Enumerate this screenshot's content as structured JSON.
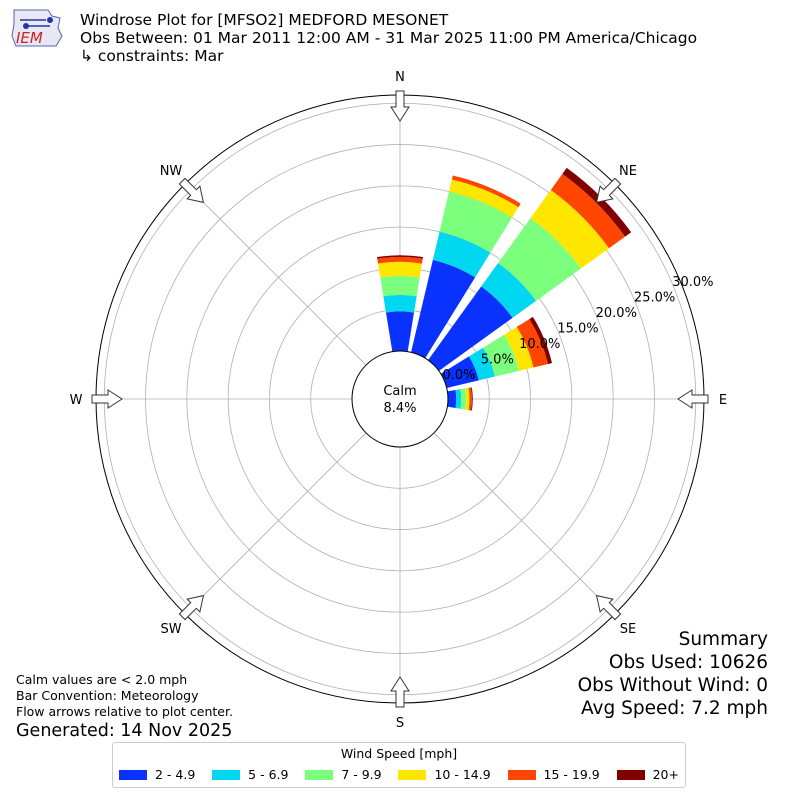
{
  "header": {
    "title": "Windrose Plot for [MFSO2] MEDFORD MESONET",
    "period": "Obs Between: 01 Mar 2011 12:00 AM - 31 Mar 2025 11:00 PM America/Chicago",
    "constraints": "↳ constraints: Mar"
  },
  "logo": {
    "text": "IEM"
  },
  "notes": {
    "calm_def": "Calm values are < 2.0 mph",
    "bar_convention": "Bar Convention: Meteorology",
    "flow_arrows": "Flow arrows relative to plot center.",
    "generated": "Generated: 14 Nov 2025"
  },
  "summary": {
    "title": "Summary",
    "obs_used": "Obs Used: 10626",
    "obs_without_wind": "Obs Without Wind: 0",
    "avg_speed": "Avg Speed: 7.2 mph"
  },
  "chart_data": {
    "type": "windrose",
    "legend_title": "Wind Speed [mph]",
    "legend_placement": "bottom",
    "calm_label": "Calm",
    "calm_value": "8.4%",
    "radial_ticks": [
      0,
      5,
      10,
      15,
      20,
      25,
      30
    ],
    "radial_tick_labels": [
      "0.0%",
      "5.0%",
      "10.0%",
      "15.0%",
      "20.0%",
      "25.0%",
      "30.0%"
    ],
    "rmax": 31,
    "compass_labels": [
      "N",
      "NE",
      "E",
      "SE",
      "S",
      "SW",
      "W",
      "NW"
    ],
    "bins": [
      {
        "label": "2 - 4.9",
        "color": "#0a32ff"
      },
      {
        "label": "5 - 6.9",
        "color": "#00d7f0"
      },
      {
        "label": "7 - 9.9",
        "color": "#7cff7c"
      },
      {
        "label": "10 - 14.9",
        "color": "#ffe600"
      },
      {
        "label": "15 - 19.9",
        "color": "#ff4600"
      },
      {
        "label": "20+",
        "color": "#800000"
      }
    ],
    "directions": [
      {
        "dir": "N",
        "values": [
          4.8,
          2.0,
          2.3,
          1.7,
          0.6,
          0.2
        ]
      },
      {
        "dir": "NNE",
        "values": [
          11.5,
          3.5,
          5.0,
          1.5,
          0.5,
          0.0
        ]
      },
      {
        "dir": "NE",
        "values": [
          11.0,
          3.5,
          6.7,
          4.2,
          2.4,
          0.9
        ]
      },
      {
        "dir": "ENE",
        "values": [
          4.0,
          2.0,
          3.0,
          1.8,
          1.8,
          0.5
        ]
      },
      {
        "dir": "E",
        "values": [
          1.0,
          0.6,
          0.6,
          0.4,
          0.3,
          0.1
        ]
      }
    ]
  }
}
